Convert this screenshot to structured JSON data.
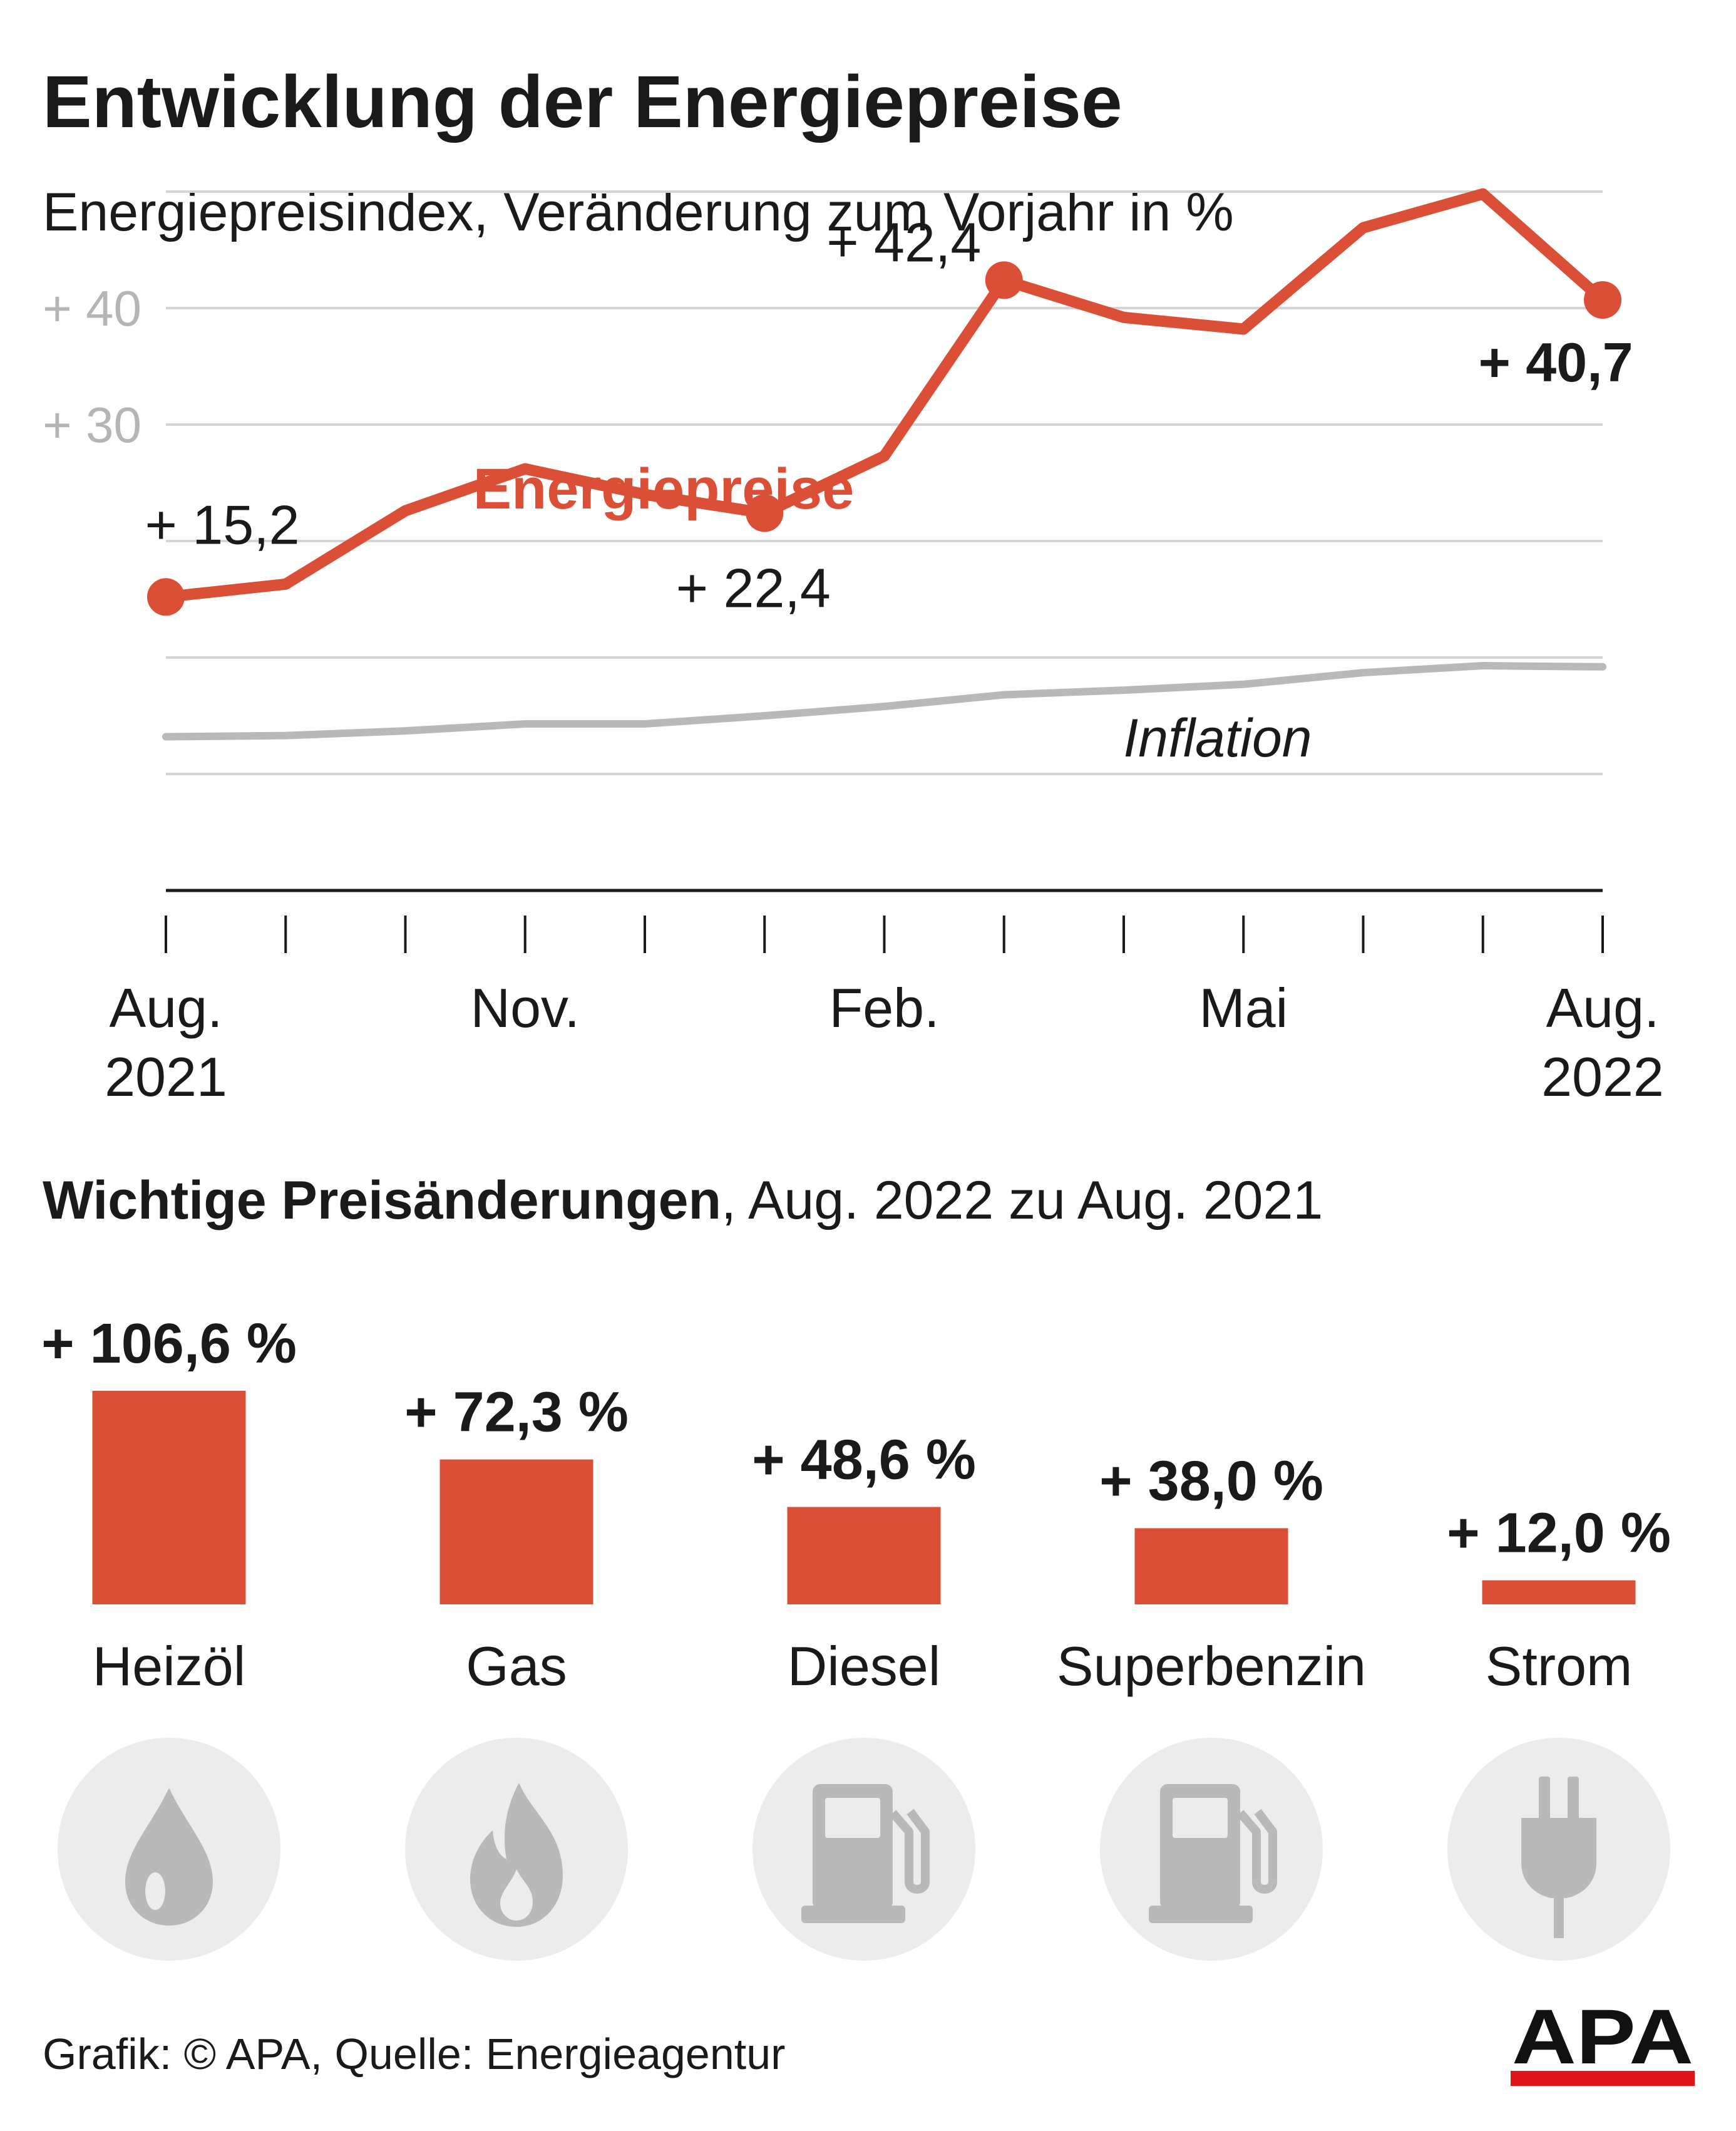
{
  "title": "Entwicklung der Energiepreise",
  "subtitle": "Energiepreisindex, Veränderung zum Vorjahr in %",
  "chart_data": [
    {
      "type": "line",
      "x": [
        "Aug. 2021",
        "Sep. 2021",
        "Okt. 2021",
        "Nov. 2021",
        "Dez. 2021",
        "Jän. 2022",
        "Feb. 2022",
        "März 2022",
        "Apr. 2022",
        "Mai 2022",
        "Juni 2022",
        "Juli 2022",
        "Aug. 2022"
      ],
      "x_tick_labels": [
        {
          "index": 0,
          "line1": "Aug.",
          "line2": "2021"
        },
        {
          "index": 3,
          "line1": "Nov.",
          "line2": ""
        },
        {
          "index": 6,
          "line1": "Feb.",
          "line2": ""
        },
        {
          "index": 9,
          "line1": "Mai",
          "line2": ""
        },
        {
          "index": 12,
          "line1": "Aug.",
          "line2": "2022"
        }
      ],
      "y_tick_labels": [
        {
          "value": 40,
          "label": "+ 40"
        },
        {
          "value": 30,
          "label": "+ 30"
        }
      ],
      "ylim": [
        -10,
        50
      ],
      "gridlines": [
        0,
        10,
        20,
        30,
        40,
        50
      ],
      "series": [
        {
          "name": "Energiepreise",
          "color": "#db4f37",
          "values": [
            15.2,
            16.3,
            22.6,
            26.2,
            24.0,
            22.4,
            27.3,
            42.4,
            39.2,
            38.2,
            46.9,
            49.8,
            40.7
          ]
        },
        {
          "name": "Inflation",
          "color": "#b9b9b9",
          "values": [
            3.2,
            3.3,
            3.7,
            4.3,
            4.3,
            5.0,
            5.8,
            6.8,
            7.2,
            7.7,
            8.7,
            9.3,
            9.2
          ]
        }
      ],
      "annotations": [
        {
          "index": 0,
          "text": "+ 15,2",
          "bold": false
        },
        {
          "index": 5,
          "text": "+ 22,4",
          "bold": false
        },
        {
          "index": 7,
          "text": "+ 42,4",
          "bold": false
        },
        {
          "index": 12,
          "text": "+ 40,7",
          "bold": true
        }
      ]
    },
    {
      "type": "bar",
      "title": "Wichtige Preisänderungen",
      "title_suffix": ", Aug. 2022 zu Aug. 2021",
      "categories": [
        "Heizöl",
        "Gas",
        "Diesel",
        "Superbenzin",
        "Strom"
      ],
      "values": [
        106.6,
        72.3,
        48.6,
        38.0,
        12.0
      ],
      "value_labels": [
        "+ 106,6 %",
        "+ 72,3 %",
        "+ 48,6 %",
        "+ 38,0 %",
        "+ 12,0 %"
      ],
      "color": "#db4f37"
    }
  ],
  "icons": [
    "oil-drop-icon",
    "gas-flame-icon",
    "fuel-pump-icon",
    "fuel-pump-icon",
    "power-plug-icon"
  ],
  "footer": {
    "source": "Grafik: © APA, Quelle: Energieagentur",
    "logo_text": "APA"
  }
}
